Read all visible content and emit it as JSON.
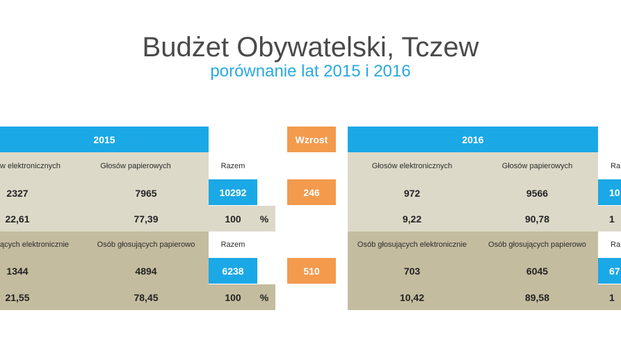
{
  "title": "Budżet Obywatelski, Tczew",
  "subtitle": "porównanie lat 2015 i 2016",
  "wzrost": {
    "label": "Wzrost",
    "votes": "246",
    "persons": "510"
  },
  "y2015": {
    "year": "2015",
    "votes": {
      "label_electronic": "w elektronicznych",
      "label_paper": "Głosów papierowych",
      "label_total": "Razem",
      "electronic": "2327",
      "paper": "7965",
      "total": "10292",
      "pct_electronic": "22,61",
      "pct_paper": "77,39",
      "pct_total": "100",
      "pct_sign": "%"
    },
    "persons": {
      "label_electronic": "ących elektronicznie",
      "label_paper": "Osób głosujących papierowo",
      "label_total": "Razem",
      "electronic": "1344",
      "paper": "4894",
      "total": "6238",
      "pct_electronic": "21,55",
      "pct_paper": "78,45",
      "pct_total": "100",
      "pct_sign": "%"
    }
  },
  "y2016": {
    "year": "2016",
    "votes": {
      "label_electronic": "Głosów elektronicznych",
      "label_paper": "Głosów papierowych",
      "label_total": "Ra",
      "electronic": "972",
      "paper": "9566",
      "total": "10",
      "pct_electronic": "9,22",
      "pct_paper": "90,78",
      "pct_total": "1"
    },
    "persons": {
      "label_electronic": "Osób głosujących elektronicznie",
      "label_paper": "Osób głosujących papierowo",
      "label_total": "Ra",
      "electronic": "703",
      "paper": "6045",
      "total": "67",
      "pct_electronic": "10,42",
      "pct_paper": "89,58",
      "pct_total": "1"
    }
  }
}
